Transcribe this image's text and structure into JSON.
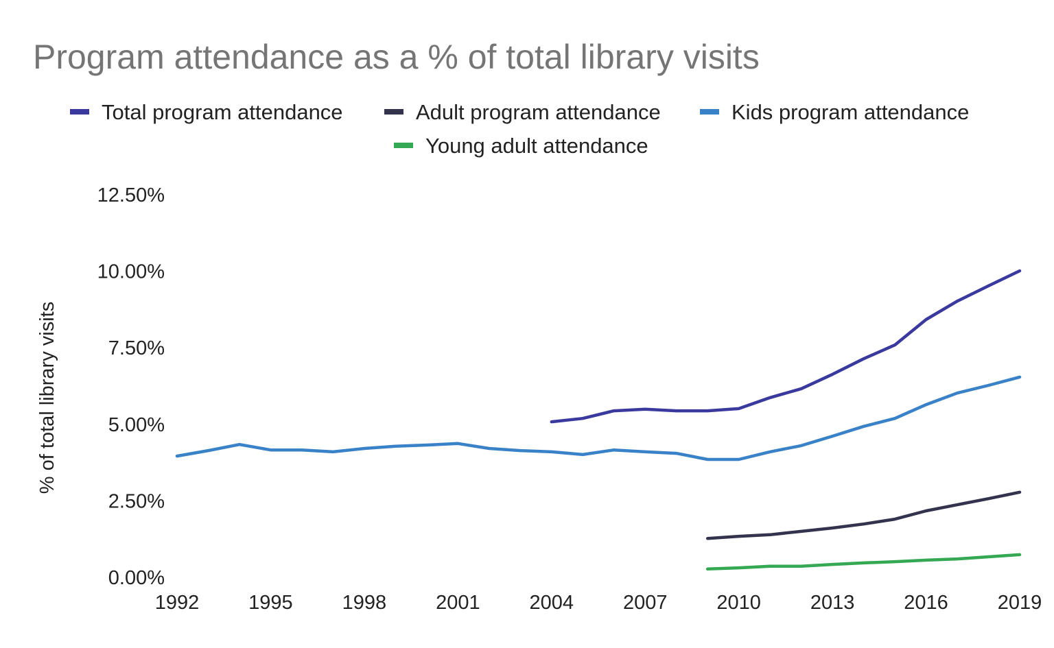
{
  "chart_data": {
    "type": "line",
    "title": "Program attendance as a % of total library visits",
    "xlabel": "",
    "ylabel": "% of total library visits",
    "xlim": [
      1992,
      2019
    ],
    "ylim": [
      0,
      12.5
    ],
    "x_ticks": [
      "1992",
      "1995",
      "1998",
      "2001",
      "2004",
      "2007",
      "2010",
      "2013",
      "2016",
      "2019"
    ],
    "y_ticks": [
      "0.00%",
      "2.50%",
      "5.00%",
      "7.50%",
      "10.00%",
      "12.50%"
    ],
    "grid": false,
    "legend_placement": "top",
    "series": [
      {
        "name": "Total program attendance",
        "color": "#3a3a9e",
        "x": [
          2004,
          2005,
          2006,
          2007,
          2008,
          2009,
          2010,
          2011,
          2012,
          2013,
          2014,
          2015,
          2016,
          2017,
          2018,
          2019
        ],
        "values": [
          5.06,
          5.17,
          5.42,
          5.47,
          5.42,
          5.42,
          5.49,
          5.85,
          6.14,
          6.61,
          7.12,
          7.57,
          8.4,
          9.0,
          9.5,
          9.99
        ]
      },
      {
        "name": "Adult program attendance",
        "color": "#33334d",
        "x": [
          2009,
          2010,
          2011,
          2012,
          2013,
          2014,
          2015,
          2016,
          2017,
          2018,
          2019
        ],
        "values": [
          1.25,
          1.32,
          1.37,
          1.48,
          1.59,
          1.72,
          1.88,
          2.15,
          2.35,
          2.55,
          2.76
        ]
      },
      {
        "name": "Kids program attendance",
        "color": "#3a82c8",
        "x": [
          1992,
          1993,
          1994,
          1995,
          1996,
          1997,
          1998,
          1999,
          2000,
          2001,
          2002,
          2003,
          2004,
          2005,
          2006,
          2007,
          2008,
          2009,
          2010,
          2011,
          2012,
          2013,
          2014,
          2015,
          2016,
          2017,
          2018,
          2019
        ],
        "values": [
          3.94,
          4.12,
          4.32,
          4.14,
          4.14,
          4.08,
          4.19,
          4.26,
          4.3,
          4.35,
          4.19,
          4.12,
          4.08,
          3.99,
          4.14,
          4.08,
          4.03,
          3.83,
          3.83,
          4.08,
          4.28,
          4.59,
          4.91,
          5.17,
          5.62,
          6.0,
          6.25,
          6.52
        ]
      },
      {
        "name": "Young adult attendance",
        "color": "#34a853",
        "x": [
          2009,
          2010,
          2011,
          2012,
          2013,
          2014,
          2015,
          2016,
          2017,
          2018,
          2019
        ],
        "values": [
          0.25,
          0.29,
          0.34,
          0.34,
          0.4,
          0.45,
          0.49,
          0.54,
          0.58,
          0.65,
          0.72
        ]
      }
    ]
  }
}
